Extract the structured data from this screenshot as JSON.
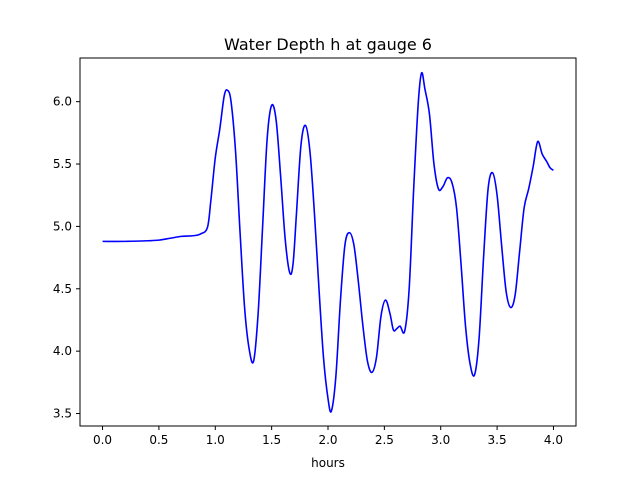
{
  "chart_data": {
    "type": "line",
    "title": "Water Depth h at gauge 6",
    "xlabel": "hours",
    "ylabel": "",
    "xlim": [
      -0.2,
      4.2
    ],
    "ylim": [
      3.4,
      6.35
    ],
    "xticks": [
      0.0,
      0.5,
      1.0,
      1.5,
      2.0,
      2.5,
      3.0,
      3.5,
      4.0
    ],
    "xtick_labels": [
      "0.0",
      "0.5",
      "1.0",
      "1.5",
      "2.0",
      "2.5",
      "3.0",
      "3.5",
      "4.0"
    ],
    "yticks": [
      3.5,
      4.0,
      4.5,
      5.0,
      5.5,
      6.0
    ],
    "ytick_labels": [
      "3.5",
      "4.0",
      "4.5",
      "5.0",
      "5.5",
      "6.0"
    ],
    "grid": false,
    "series": [
      {
        "name": "",
        "color": "#0000ff",
        "points": [
          [
            0.0,
            4.88
          ],
          [
            0.2,
            4.88
          ],
          [
            0.4,
            4.885
          ],
          [
            0.5,
            4.89
          ],
          [
            0.6,
            4.905
          ],
          [
            0.7,
            4.92
          ],
          [
            0.8,
            4.925
          ],
          [
            0.87,
            4.94
          ],
          [
            0.93,
            4.99
          ],
          [
            0.96,
            5.2
          ],
          [
            1.0,
            5.55
          ],
          [
            1.04,
            5.78
          ],
          [
            1.08,
            6.05
          ],
          [
            1.11,
            6.09
          ],
          [
            1.14,
            6.0
          ],
          [
            1.18,
            5.6
          ],
          [
            1.22,
            4.95
          ],
          [
            1.26,
            4.35
          ],
          [
            1.3,
            4.02
          ],
          [
            1.34,
            3.92
          ],
          [
            1.38,
            4.3
          ],
          [
            1.42,
            5.0
          ],
          [
            1.46,
            5.7
          ],
          [
            1.5,
            5.97
          ],
          [
            1.54,
            5.85
          ],
          [
            1.58,
            5.4
          ],
          [
            1.62,
            4.9
          ],
          [
            1.66,
            4.63
          ],
          [
            1.69,
            4.7
          ],
          [
            1.72,
            5.1
          ],
          [
            1.76,
            5.65
          ],
          [
            1.8,
            5.81
          ],
          [
            1.84,
            5.6
          ],
          [
            1.88,
            5.1
          ],
          [
            1.92,
            4.5
          ],
          [
            1.96,
            3.95
          ],
          [
            2.0,
            3.62
          ],
          [
            2.03,
            3.52
          ],
          [
            2.07,
            3.8
          ],
          [
            2.11,
            4.4
          ],
          [
            2.15,
            4.85
          ],
          [
            2.19,
            4.95
          ],
          [
            2.23,
            4.85
          ],
          [
            2.27,
            4.55
          ],
          [
            2.31,
            4.2
          ],
          [
            2.35,
            3.92
          ],
          [
            2.39,
            3.83
          ],
          [
            2.43,
            3.95
          ],
          [
            2.47,
            4.28
          ],
          [
            2.51,
            4.41
          ],
          [
            2.55,
            4.3
          ],
          [
            2.58,
            4.17
          ],
          [
            2.61,
            4.18
          ],
          [
            2.64,
            4.2
          ],
          [
            2.68,
            4.16
          ],
          [
            2.72,
            4.5
          ],
          [
            2.76,
            5.3
          ],
          [
            2.8,
            5.98
          ],
          [
            2.83,
            6.23
          ],
          [
            2.86,
            6.1
          ],
          [
            2.9,
            5.9
          ],
          [
            2.94,
            5.5
          ],
          [
            2.98,
            5.3
          ],
          [
            3.02,
            5.32
          ],
          [
            3.06,
            5.39
          ],
          [
            3.1,
            5.35
          ],
          [
            3.14,
            5.15
          ],
          [
            3.18,
            4.7
          ],
          [
            3.22,
            4.2
          ],
          [
            3.26,
            3.9
          ],
          [
            3.3,
            3.81
          ],
          [
            3.34,
            4.1
          ],
          [
            3.38,
            4.75
          ],
          [
            3.42,
            5.3
          ],
          [
            3.46,
            5.43
          ],
          [
            3.5,
            5.25
          ],
          [
            3.54,
            4.85
          ],
          [
            3.58,
            4.48
          ],
          [
            3.62,
            4.35
          ],
          [
            3.66,
            4.45
          ],
          [
            3.7,
            4.8
          ],
          [
            3.74,
            5.15
          ],
          [
            3.78,
            5.3
          ],
          [
            3.82,
            5.48
          ],
          [
            3.86,
            5.68
          ],
          [
            3.9,
            5.58
          ],
          [
            3.94,
            5.52
          ],
          [
            3.97,
            5.47
          ],
          [
            4.0,
            5.45
          ]
        ]
      }
    ]
  }
}
